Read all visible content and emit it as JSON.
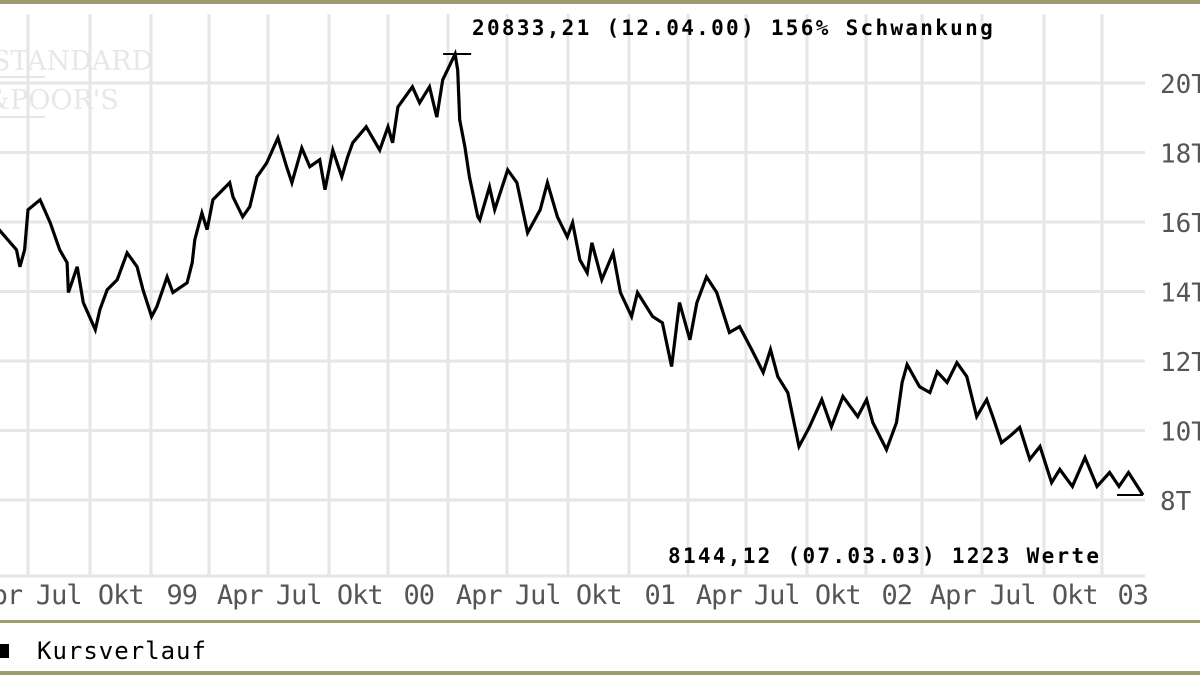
{
  "chart_data": {
    "type": "line",
    "title": "",
    "xlabel": "",
    "ylabel": "",
    "y_axis_side": "right",
    "ylim": [
      8000,
      20000
    ],
    "y_ticks": [
      20000,
      18000,
      16000,
      14000,
      12000,
      10000,
      8000
    ],
    "y_tick_labels": [
      "20T",
      "18T",
      "16T",
      "14T",
      "12T",
      "10T",
      "8T"
    ],
    "x_gridline_dates": [
      "1998-07-01",
      "1998-10-01",
      "1999-01-01",
      "1999-04-01",
      "1999-07-01",
      "1999-10-01",
      "2000-01-01",
      "2000-04-01",
      "2000-07-01",
      "2000-10-01",
      "2001-01-01",
      "2001-04-01",
      "2001-07-01",
      "2001-10-01",
      "2002-01-01",
      "2002-04-01",
      "2002-07-01",
      "2002-10-01",
      "2003-01-01"
    ],
    "x_tick_labels": [
      "Apr",
      "Jul",
      "Okt",
      "99",
      "Apr",
      "Jul",
      "Okt",
      "00",
      "Apr",
      "Jul",
      "Okt",
      "01",
      "Apr",
      "Jul",
      "Okt",
      "02",
      "Apr",
      "Jul",
      "Okt",
      "03"
    ],
    "xlim": [
      "1998-05-19",
      "2003-03-07"
    ],
    "grid": true,
    "legend_placement": "bottom-left",
    "colors": {
      "line": "#000000",
      "grid": "#e6e6e6",
      "border": "#9c9c6c",
      "text": "#000000",
      "axis_text": "#555555"
    },
    "series": [
      {
        "name": "Kursverlauf",
        "points": [
          [
            "1998-05-19",
            15780
          ],
          [
            "1998-06-14",
            15200
          ],
          [
            "1998-06-19",
            14710
          ],
          [
            "1998-06-26",
            15200
          ],
          [
            "1998-07-01",
            16350
          ],
          [
            "1998-07-19",
            16640
          ],
          [
            "1998-08-03",
            15980
          ],
          [
            "1998-08-17",
            15200
          ],
          [
            "1998-08-28",
            14830
          ],
          [
            "1998-08-30",
            13970
          ],
          [
            "1998-09-12",
            14710
          ],
          [
            "1998-09-21",
            13680
          ],
          [
            "1998-10-09",
            12900
          ],
          [
            "1998-10-16",
            13480
          ],
          [
            "1998-10-27",
            14050
          ],
          [
            "1998-11-11",
            14340
          ],
          [
            "1998-11-26",
            15110
          ],
          [
            "1998-12-11",
            14710
          ],
          [
            "1998-12-20",
            14050
          ],
          [
            "1999-01-02",
            13280
          ],
          [
            "1999-01-10",
            13560
          ],
          [
            "1999-01-26",
            14420
          ],
          [
            "1999-02-04",
            13970
          ],
          [
            "1999-02-26",
            14250
          ],
          [
            "1999-03-06",
            14830
          ],
          [
            "1999-03-10",
            15490
          ],
          [
            "1999-03-21",
            16260
          ],
          [
            "1999-03-29",
            15780
          ],
          [
            "1999-04-07",
            16640
          ],
          [
            "1999-05-03",
            17130
          ],
          [
            "1999-05-08",
            16720
          ],
          [
            "1999-05-23",
            16150
          ],
          [
            "1999-06-03",
            16440
          ],
          [
            "1999-06-14",
            17300
          ],
          [
            "1999-06-29",
            17700
          ],
          [
            "1999-07-16",
            18420
          ],
          [
            "1999-07-29",
            17590
          ],
          [
            "1999-08-06",
            17130
          ],
          [
            "1999-08-21",
            18130
          ],
          [
            "1999-09-02",
            17590
          ],
          [
            "1999-09-17",
            17790
          ],
          [
            "1999-09-25",
            16930
          ],
          [
            "1999-10-07",
            18070
          ],
          [
            "1999-10-21",
            17300
          ],
          [
            "1999-10-30",
            17870
          ],
          [
            "1999-11-07",
            18280
          ],
          [
            "1999-11-28",
            18740
          ],
          [
            "1999-12-19",
            18070
          ],
          [
            "2000-01-01",
            18740
          ],
          [
            "2000-01-08",
            18280
          ],
          [
            "2000-01-16",
            19310
          ],
          [
            "2000-02-07",
            19890
          ],
          [
            "2000-02-18",
            19430
          ],
          [
            "2000-03-04",
            19890
          ],
          [
            "2000-03-15",
            19020
          ],
          [
            "2000-03-24",
            20090
          ],
          [
            "2000-04-12",
            20833.21
          ],
          [
            "2000-04-16",
            20370
          ],
          [
            "2000-04-19",
            18940
          ],
          [
            "2000-04-27",
            18160
          ],
          [
            "2000-05-04",
            17300
          ],
          [
            "2000-05-17",
            16150
          ],
          [
            "2000-05-20",
            16060
          ],
          [
            "2000-06-04",
            17010
          ],
          [
            "2000-06-12",
            16350
          ],
          [
            "2000-07-02",
            17500
          ],
          [
            "2000-07-16",
            17130
          ],
          [
            "2000-08-01",
            15690
          ],
          [
            "2000-08-20",
            16350
          ],
          [
            "2000-08-31",
            17130
          ],
          [
            "2000-09-15",
            16150
          ],
          [
            "2000-09-30",
            15570
          ],
          [
            "2000-10-08",
            15980
          ],
          [
            "2000-10-19",
            14910
          ],
          [
            "2000-10-30",
            14540
          ],
          [
            "2000-11-06",
            15400
          ],
          [
            "2000-11-21",
            14340
          ],
          [
            "2000-12-08",
            15110
          ],
          [
            "2000-12-19",
            13970
          ],
          [
            "2001-01-05",
            13280
          ],
          [
            "2001-01-14",
            13970
          ],
          [
            "2001-02-06",
            13280
          ],
          [
            "2001-02-21",
            13100
          ],
          [
            "2001-03-07",
            11840
          ],
          [
            "2001-03-19",
            13680
          ],
          [
            "2001-04-04",
            12610
          ],
          [
            "2001-04-15",
            13680
          ],
          [
            "2001-04-30",
            14420
          ],
          [
            "2001-05-16",
            13970
          ],
          [
            "2001-06-05",
            12820
          ],
          [
            "2001-06-21",
            12990
          ],
          [
            "2001-07-12",
            12240
          ],
          [
            "2001-07-27",
            11670
          ],
          [
            "2001-08-07",
            12330
          ],
          [
            "2001-08-18",
            11550
          ],
          [
            "2001-09-02",
            11090
          ],
          [
            "2001-09-19",
            9540
          ],
          [
            "2001-10-05",
            10110
          ],
          [
            "2001-10-24",
            10890
          ],
          [
            "2001-11-08",
            10110
          ],
          [
            "2001-11-26",
            10980
          ],
          [
            "2001-12-19",
            10400
          ],
          [
            "2002-01-02",
            10890
          ],
          [
            "2002-01-12",
            10230
          ],
          [
            "2002-02-03",
            9450
          ],
          [
            "2002-02-19",
            10230
          ],
          [
            "2002-02-28",
            11380
          ],
          [
            "2002-03-08",
            11900
          ],
          [
            "2002-03-28",
            11260
          ],
          [
            "2002-04-13",
            11090
          ],
          [
            "2002-04-24",
            11690
          ],
          [
            "2002-05-09",
            11380
          ],
          [
            "2002-05-24",
            11950
          ],
          [
            "2002-06-08",
            11550
          ],
          [
            "2002-06-23",
            10400
          ],
          [
            "2002-07-08",
            10890
          ],
          [
            "2002-07-17",
            10400
          ],
          [
            "2002-07-30",
            9650
          ],
          [
            "2002-08-11",
            9830
          ],
          [
            "2002-08-26",
            10090
          ],
          [
            "2002-09-10",
            9170
          ],
          [
            "2002-09-25",
            9540
          ],
          [
            "2002-10-13",
            8500
          ],
          [
            "2002-10-26",
            8880
          ],
          [
            "2002-11-15",
            8390
          ],
          [
            "2002-12-05",
            9220
          ],
          [
            "2002-12-24",
            8390
          ],
          [
            "2003-01-13",
            8790
          ],
          [
            "2003-01-28",
            8390
          ],
          [
            "2003-02-12",
            8790
          ],
          [
            "2003-03-07",
            8144.12
          ]
        ]
      }
    ],
    "annotations": {
      "max": {
        "value": 20833.21,
        "date": "2000-04-12",
        "text": "20833,21 (12.04.00) 156% Schwankung"
      },
      "min": {
        "value": 8144.12,
        "date": "2003-03-07",
        "text": "8144,12 (07.03.03) 1223 Werte"
      }
    }
  },
  "legend": {
    "label": "Kursverlauf",
    "swatch_color": "#000000"
  },
  "watermark": {
    "line1": "STANDARD",
    "line2": "&POOR'S"
  }
}
